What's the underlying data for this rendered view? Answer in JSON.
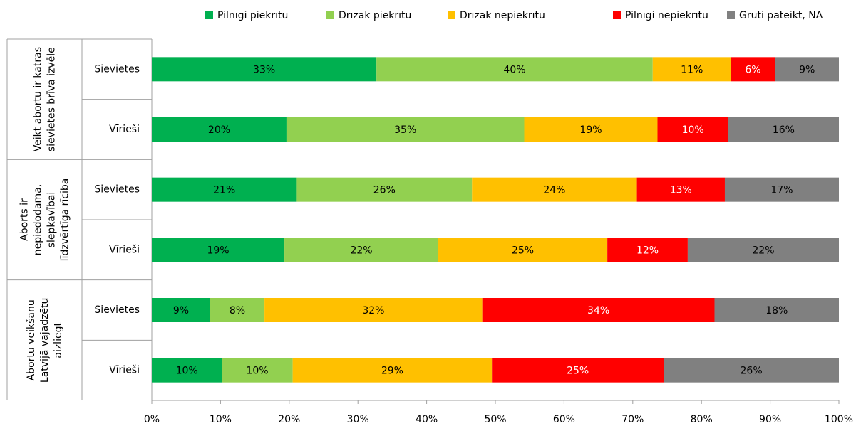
{
  "chart_data": {
    "type": "hbar_stacked",
    "group_labels": [
      [
        "Veikt abortu ir katras",
        "sievietes brīva izvēle"
      ],
      [
        "Aborts ir",
        "nepiedodama,",
        "slepkavībai",
        "līdzvērtīga rīcība"
      ],
      [
        "Abortu veikšanu",
        "Latvijā vajadzētu",
        "aizliegt"
      ]
    ],
    "categories": [
      "Sievietes",
      "Vīrieši",
      "Sievietes",
      "Vīrieši",
      "Sievietes",
      "Vīrieši"
    ],
    "series": [
      {
        "name": "Pilnīgi piekrītu",
        "color": "#00b050",
        "label_color": "#000000",
        "values": [
          32.7,
          19.6,
          21.1,
          19.3,
          8.5,
          10.2
        ],
        "value_labels": [
          "33%",
          "20%",
          "21%",
          "19%",
          "9%",
          "10%"
        ]
      },
      {
        "name": "Drīzāk piekrītu",
        "color": "#92d050",
        "label_color": "#000000",
        "values": [
          40.2,
          34.6,
          25.5,
          22.4,
          7.9,
          10.3
        ],
        "value_labels": [
          "40%",
          "35%",
          "26%",
          "22%",
          "8%",
          "10%"
        ]
      },
      {
        "name": "Drīzāk nepiekrītu",
        "color": "#ffc000",
        "label_color": "#000000",
        "values": [
          11.4,
          19.4,
          24.0,
          24.6,
          31.7,
          29.0
        ],
        "value_labels": [
          "11%",
          "19%",
          "24%",
          "25%",
          "32%",
          "29%"
        ]
      },
      {
        "name": "Pilnīgi nepiekrītu",
        "color": "#ff0000",
        "label_color": "#ffffff",
        "values": [
          6.4,
          10.3,
          12.8,
          11.7,
          33.8,
          25.0
        ],
        "value_labels": [
          "6%",
          "10%",
          "13%",
          "12%",
          "34%",
          "25%"
        ]
      },
      {
        "name": "Grūti pateikt, NA",
        "color": "#808080",
        "label_color": "#000000",
        "values": [
          9.3,
          16.1,
          16.6,
          22.0,
          18.1,
          25.5
        ],
        "value_labels": [
          "9%",
          "16%",
          "17%",
          "22%",
          "18%",
          "26%"
        ]
      }
    ],
    "xlim": [
      0,
      100
    ],
    "xticks": [
      {
        "value": 0,
        "label": "0%"
      },
      {
        "value": 10,
        "label": "10%"
      },
      {
        "value": 20,
        "label": "20%"
      },
      {
        "value": 30,
        "label": "30%"
      },
      {
        "value": 40,
        "label": "40%"
      },
      {
        "value": 50,
        "label": "50%"
      },
      {
        "value": 60,
        "label": "60%"
      },
      {
        "value": 70,
        "label": "70%"
      },
      {
        "value": 80,
        "label": "80%"
      },
      {
        "value": 90,
        "label": "90%"
      },
      {
        "value": 100,
        "label": "100%"
      }
    ],
    "legend": "top"
  }
}
